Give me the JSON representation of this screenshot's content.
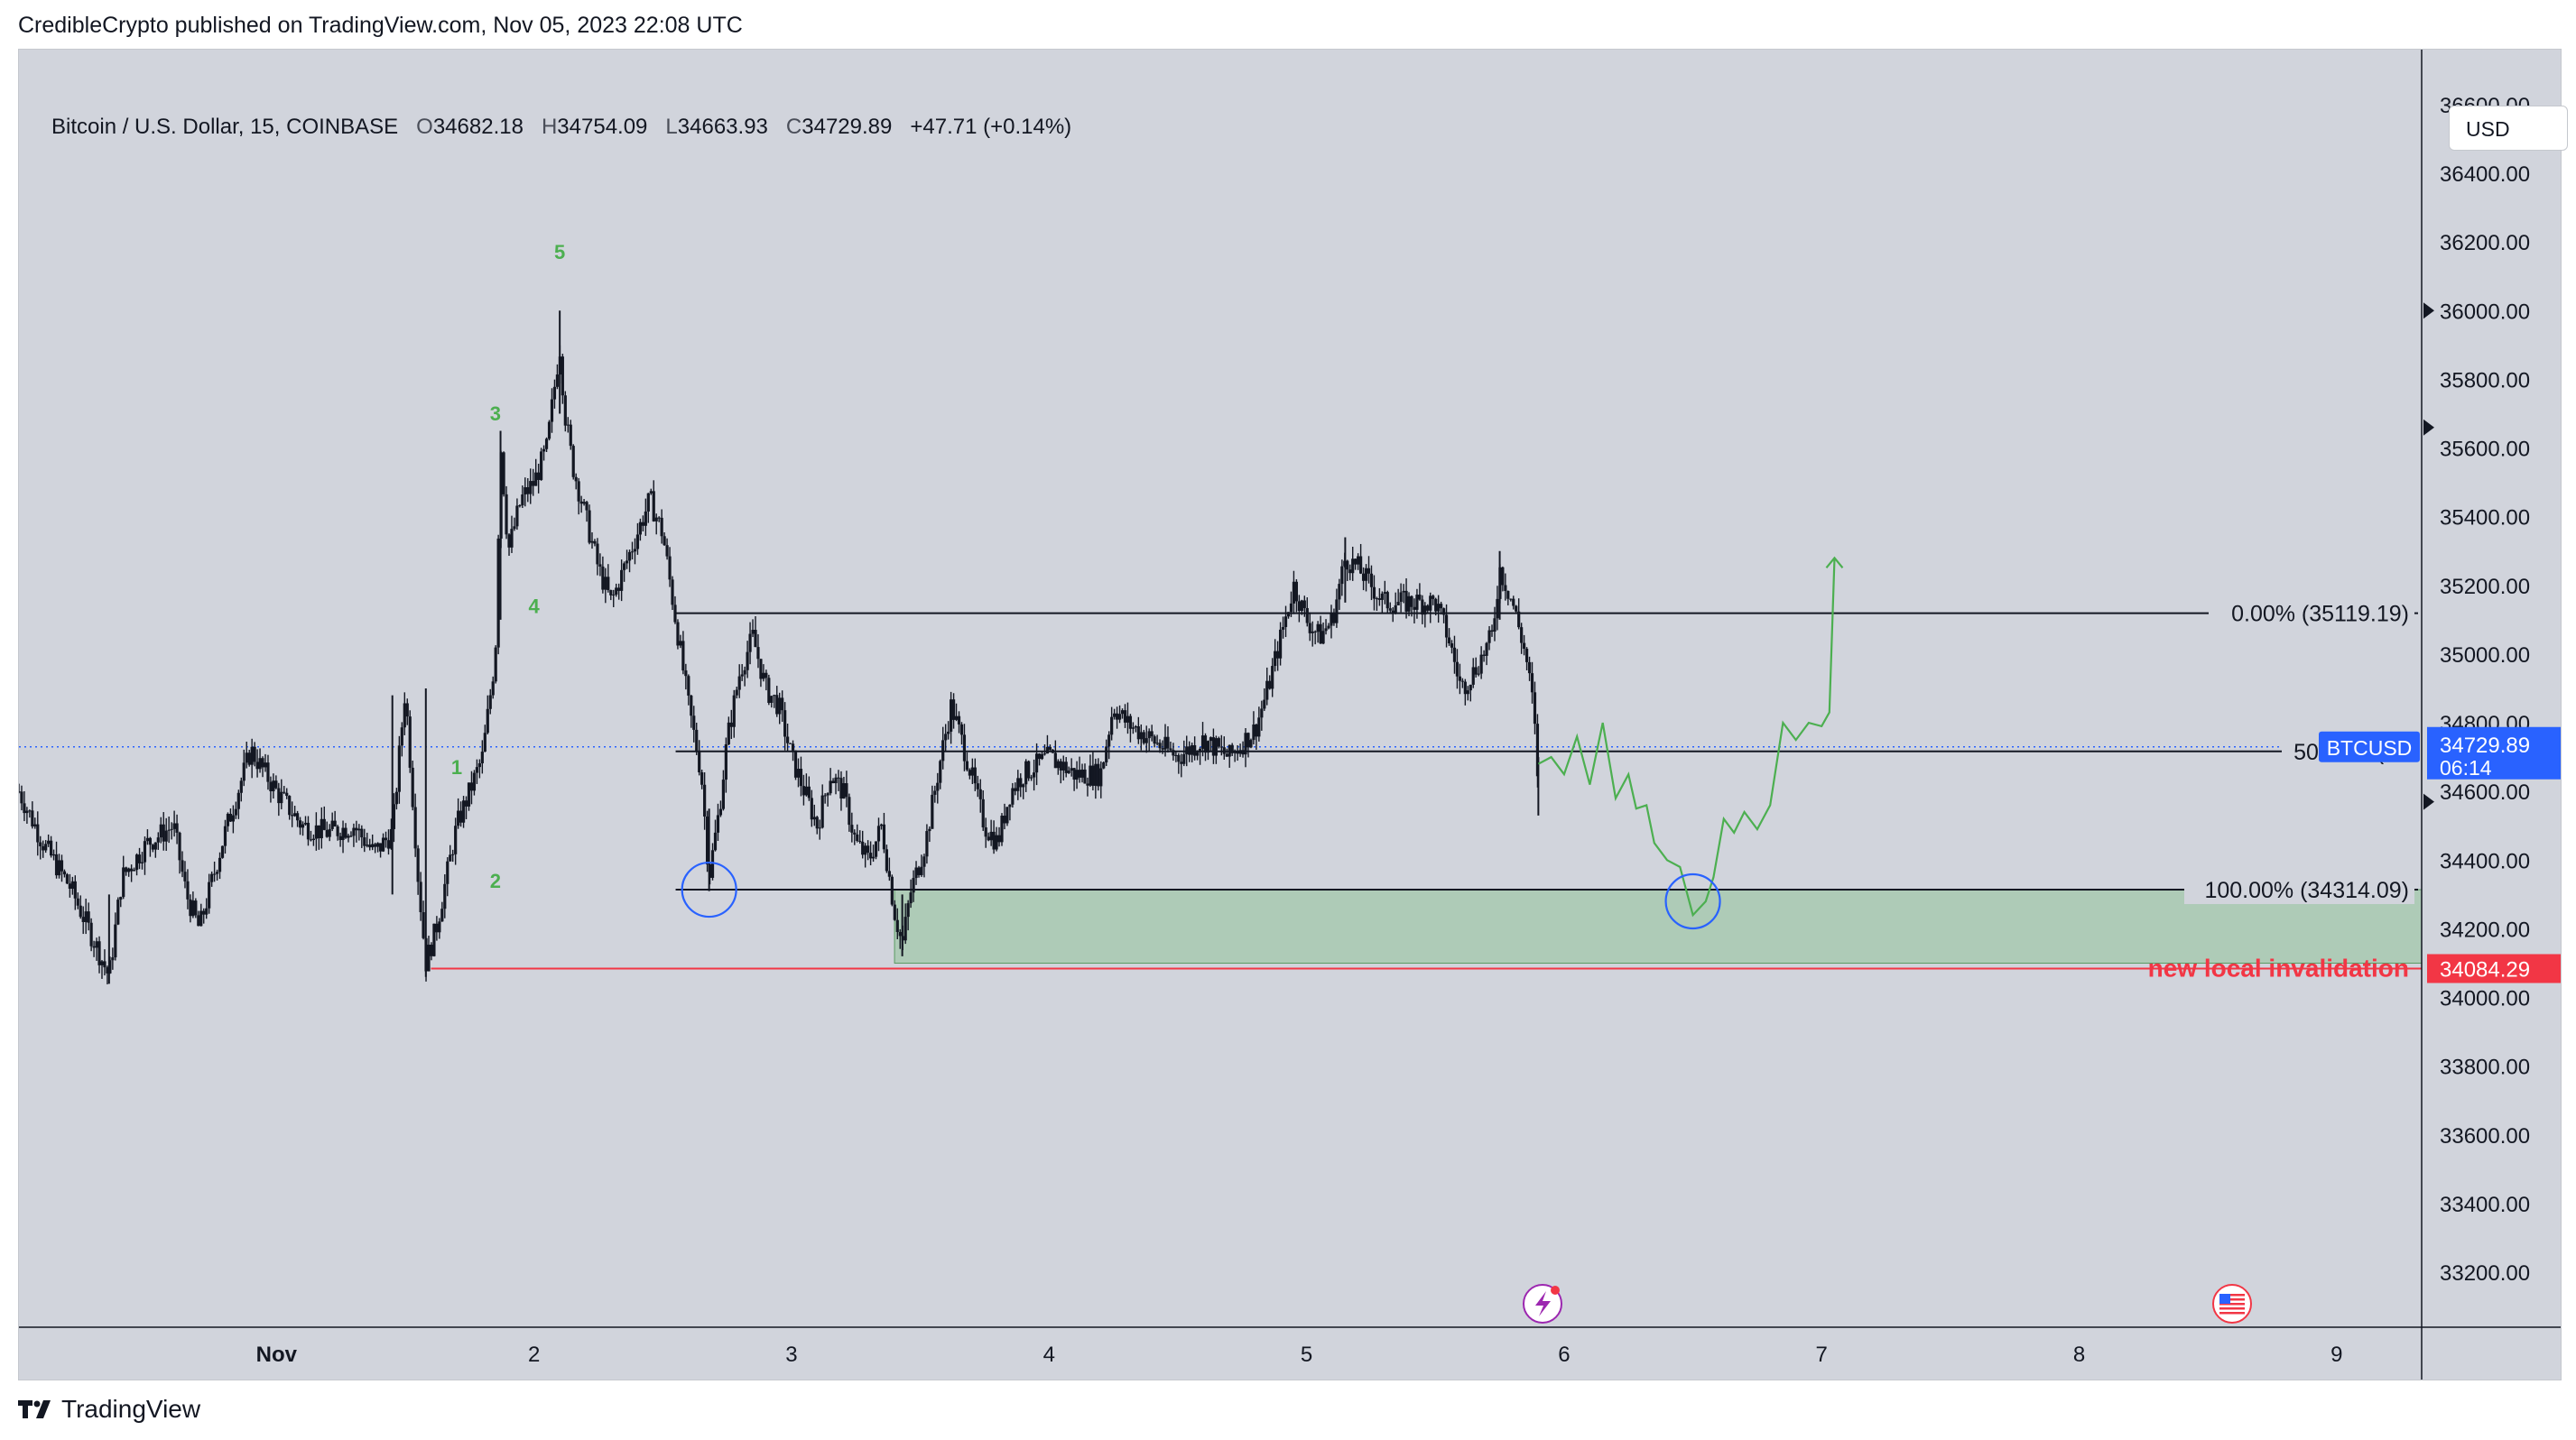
{
  "publisher_line": "CredibleCrypto published on TradingView.com, Nov 05, 2023 22:08 UTC",
  "header": {
    "symbol": "Bitcoin / U.S. Dollar, 15, COINBASE",
    "open_label": "O",
    "open": "34682.18",
    "high_label": "H",
    "high": "34754.09",
    "low_label": "L",
    "low": "34663.93",
    "close_label": "C",
    "close": "34729.89",
    "change": "+47.71 (+0.14%)"
  },
  "currency_button": "USD",
  "footer_brand": "TradingView",
  "colors": {
    "background": "#d1d4dc",
    "candles": "#131722",
    "projection": "#4caf50",
    "zone_fill": "#9fc7a6",
    "invalidation": "#f23645",
    "price_tag": "#2962ff",
    "circle": "#2962ff",
    "wave_label": "#4caf50"
  },
  "chart_data": {
    "type": "candlestick",
    "symbol": "BTCUSD",
    "interval": "15",
    "exchange": "COINBASE",
    "x_axis": {
      "ticks": [
        "Nov",
        "2",
        "3",
        "4",
        "5",
        "6",
        "7",
        "8",
        "9"
      ],
      "tick_days": [
        1,
        2,
        3,
        4,
        5,
        6,
        7,
        8,
        9
      ],
      "range_days": [
        0.0,
        9.33
      ]
    },
    "y_axis": {
      "ticks": [
        "33200.00",
        "33400.00",
        "33600.00",
        "33800.00",
        "34000.00",
        "34200.00",
        "34400.00",
        "34600.00",
        "34800.00",
        "35000.00",
        "35200.00",
        "35400.00",
        "35600.00",
        "35800.00",
        "36000.00",
        "36200.00",
        "36400.00",
        "36600.00"
      ],
      "range": [
        33040,
        36760
      ]
    },
    "price_path": [
      [
        0.0,
        34600
      ],
      [
        0.1,
        34440
      ],
      [
        0.2,
        34320
      ],
      [
        0.3,
        34150
      ],
      [
        0.35,
        34060
      ],
      [
        0.4,
        34350
      ],
      [
        0.5,
        34450
      ],
      [
        0.6,
        34500
      ],
      [
        0.65,
        34300
      ],
      [
        0.7,
        34200
      ],
      [
        0.8,
        34480
      ],
      [
        0.85,
        34600
      ],
      [
        0.9,
        34720
      ],
      [
        1.0,
        34600
      ],
      [
        1.1,
        34500
      ],
      [
        1.2,
        34480
      ],
      [
        1.3,
        34500
      ],
      [
        1.38,
        34420
      ],
      [
        1.45,
        34480
      ],
      [
        1.5,
        34900
      ],
      [
        1.55,
        34350
      ],
      [
        1.58,
        34100
      ],
      [
        1.62,
        34200
      ],
      [
        1.7,
        34500
      ],
      [
        1.75,
        34600
      ],
      [
        1.8,
        34700
      ],
      [
        1.85,
        35000
      ],
      [
        1.87,
        35620
      ],
      [
        1.9,
        35300
      ],
      [
        1.95,
        35450
      ],
      [
        2.0,
        35500
      ],
      [
        2.05,
        35600
      ],
      [
        2.1,
        35900
      ],
      [
        2.12,
        35700
      ],
      [
        2.15,
        35550
      ],
      [
        2.2,
        35400
      ],
      [
        2.25,
        35250
      ],
      [
        2.3,
        35150
      ],
      [
        2.35,
        35250
      ],
      [
        2.4,
        35350
      ],
      [
        2.45,
        35450
      ],
      [
        2.5,
        35350
      ],
      [
        2.55,
        35100
      ],
      [
        2.6,
        34850
      ],
      [
        2.65,
        34650
      ],
      [
        2.68,
        34350
      ],
      [
        2.72,
        34550
      ],
      [
        2.75,
        34750
      ],
      [
        2.8,
        34950
      ],
      [
        2.85,
        35050
      ],
      [
        2.9,
        34900
      ],
      [
        2.95,
        34850
      ],
      [
        3.0,
        34700
      ],
      [
        3.05,
        34600
      ],
      [
        3.1,
        34500
      ],
      [
        3.15,
        34650
      ],
      [
        3.2,
        34600
      ],
      [
        3.25,
        34450
      ],
      [
        3.3,
        34400
      ],
      [
        3.35,
        34500
      ],
      [
        3.4,
        34250
      ],
      [
        3.43,
        34150
      ],
      [
        3.46,
        34300
      ],
      [
        3.52,
        34450
      ],
      [
        3.58,
        34700
      ],
      [
        3.62,
        34850
      ],
      [
        3.68,
        34700
      ],
      [
        3.75,
        34500
      ],
      [
        3.8,
        34450
      ],
      [
        3.85,
        34600
      ],
      [
        3.9,
        34650
      ],
      [
        4.0,
        34700
      ],
      [
        4.1,
        34650
      ],
      [
        4.2,
        34650
      ],
      [
        4.25,
        34850
      ],
      [
        4.3,
        34800
      ],
      [
        4.4,
        34750
      ],
      [
        4.5,
        34700
      ],
      [
        4.6,
        34750
      ],
      [
        4.7,
        34700
      ],
      [
        4.8,
        34780
      ],
      [
        4.85,
        34900
      ],
      [
        4.95,
        35200
      ],
      [
        5.0,
        35100
      ],
      [
        5.05,
        35050
      ],
      [
        5.1,
        35100
      ],
      [
        5.15,
        35280
      ],
      [
        5.2,
        35250
      ],
      [
        5.25,
        35200
      ],
      [
        5.3,
        35150
      ],
      [
        5.4,
        35150
      ],
      [
        5.5,
        35150
      ],
      [
        5.55,
        35050
      ],
      [
        5.6,
        34900
      ],
      [
        5.65,
        34950
      ],
      [
        5.72,
        35050
      ],
      [
        5.75,
        35250
      ],
      [
        5.8,
        35150
      ],
      [
        5.85,
        35000
      ],
      [
        5.88,
        34850
      ],
      [
        5.9,
        34620
      ]
    ],
    "projection_path": [
      [
        5.9,
        34680
      ],
      [
        5.95,
        34700
      ],
      [
        6.0,
        34650
      ],
      [
        6.05,
        34760
      ],
      [
        6.1,
        34620
      ],
      [
        6.15,
        34800
      ],
      [
        6.2,
        34580
      ],
      [
        6.25,
        34650
      ],
      [
        6.28,
        34550
      ],
      [
        6.32,
        34560
      ],
      [
        6.35,
        34450
      ],
      [
        6.4,
        34400
      ],
      [
        6.45,
        34380
      ],
      [
        6.5,
        34240
      ],
      [
        6.55,
        34280
      ],
      [
        6.58,
        34350
      ],
      [
        6.62,
        34520
      ],
      [
        6.66,
        34480
      ],
      [
        6.7,
        34540
      ],
      [
        6.75,
        34490
      ],
      [
        6.8,
        34560
      ],
      [
        6.85,
        34800
      ],
      [
        6.9,
        34750
      ],
      [
        6.95,
        34800
      ],
      [
        7.0,
        34790
      ],
      [
        7.03,
        34830
      ],
      [
        7.05,
        35280
      ]
    ],
    "annotations": {
      "fib_levels": [
        {
          "label": "0.00% (35119.19)",
          "price": 35119.19
        },
        {
          "label": "50.00% (34",
          "price": 34716.64
        },
        {
          "label": "100.00% (34314.09)",
          "price": 34314.09
        }
      ],
      "fib_start_day": 2.55,
      "zone": {
        "from_day": 3.4,
        "to_price_top": 34314.09,
        "to_price_bottom": 34100
      },
      "invalidation": {
        "label": "new local invalidation",
        "price": 34084.29,
        "from_day": 1.6
      },
      "wave_labels": [
        {
          "label": "1",
          "day": 1.7,
          "price": 34650
        },
        {
          "label": "2",
          "day": 1.85,
          "price": 34320
        },
        {
          "label": "3",
          "day": 1.85,
          "price": 35680
        },
        {
          "label": "4",
          "day": 2.0,
          "price": 35120
        },
        {
          "label": "5",
          "day": 2.1,
          "price": 36150
        }
      ],
      "circles": [
        {
          "day": 2.68,
          "price": 34314
        },
        {
          "day": 6.5,
          "price": 34280
        }
      ],
      "last_price_line": 34729.89
    },
    "price_tags": {
      "ticker": "BTCUSD",
      "last_price": "34729.89",
      "countdown": "06:14",
      "invalidation": "34084.29"
    }
  }
}
